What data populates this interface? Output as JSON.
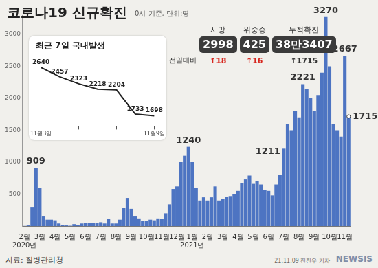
{
  "title": "코로나19 신규확진",
  "subtitle": "0시 기준, 단위:명",
  "stats": {
    "note": "전일대비",
    "items": [
      {
        "label": "사망",
        "value": "2998",
        "change": "↑18",
        "color": "#d7261e"
      },
      {
        "label": "위중증",
        "value": "425",
        "change": "↑16",
        "color": "#d7261e"
      },
      {
        "label": "누적확진",
        "value": "38만3407",
        "change": "↑1715",
        "color": "#333333"
      }
    ]
  },
  "chart_data": [
    {
      "type": "bar",
      "categories": [
        [
          "2월",
          "2020년"
        ],
        null,
        null,
        null,
        "3월",
        null,
        null,
        null,
        "4월",
        null,
        null,
        null,
        "5월",
        null,
        null,
        null,
        "6월",
        null,
        null,
        null,
        "7월",
        null,
        null,
        null,
        "8월",
        null,
        null,
        null,
        "9월",
        null,
        null,
        null,
        "10월",
        null,
        null,
        null,
        "11월",
        null,
        null,
        null,
        "12월",
        null,
        null,
        null,
        [
          "1월",
          "2021년"
        ],
        null,
        null,
        null,
        "2월",
        null,
        null,
        null,
        "3월",
        null,
        null,
        null,
        "4월",
        null,
        null,
        null,
        "5월",
        null,
        null,
        null,
        "6월",
        null,
        null,
        null,
        "7월",
        null,
        null,
        null,
        "8월",
        null,
        null,
        null,
        "9월",
        null,
        null,
        null,
        "10월",
        null,
        null,
        null,
        "11월",
        null
      ],
      "values": [
        2,
        10,
        300,
        909,
        600,
        150,
        100,
        100,
        90,
        40,
        15,
        10,
        5,
        30,
        20,
        40,
        50,
        45,
        50,
        50,
        60,
        40,
        110,
        40,
        40,
        100,
        280,
        440,
        270,
        150,
        120,
        80,
        80,
        100,
        90,
        120,
        110,
        200,
        340,
        580,
        620,
        1000,
        1100,
        1240,
        1000,
        600,
        400,
        450,
        400,
        450,
        620,
        400,
        420,
        460,
        470,
        500,
        550,
        670,
        730,
        790,
        660,
        700,
        650,
        560,
        550,
        480,
        650,
        800,
        1211,
        1600,
        1500,
        1800,
        1700,
        2221,
        2150,
        2000,
        1800,
        2050,
        2400,
        3270,
        2500,
        1600,
        1500,
        1400,
        2667,
        1715
      ],
      "value_labels": [
        null,
        null,
        null,
        "909",
        null,
        null,
        null,
        null,
        null,
        null,
        null,
        null,
        null,
        null,
        null,
        null,
        null,
        null,
        null,
        null,
        null,
        null,
        null,
        null,
        null,
        null,
        null,
        null,
        null,
        null,
        null,
        null,
        null,
        null,
        null,
        null,
        null,
        null,
        null,
        null,
        null,
        null,
        null,
        "1240",
        null,
        null,
        null,
        null,
        null,
        null,
        null,
        null,
        null,
        null,
        null,
        null,
        null,
        null,
        null,
        null,
        null,
        null,
        null,
        null,
        null,
        null,
        null,
        null,
        "1211",
        null,
        null,
        null,
        null,
        "2221",
        null,
        null,
        null,
        null,
        null,
        "3270",
        null,
        null,
        null,
        null,
        "2667",
        "1715"
      ],
      "color": "#4d74c2",
      "ylim": [
        0,
        3300
      ],
      "yticks": [
        500,
        1000,
        1500,
        2000,
        2500,
        3000
      ],
      "grid": false
    },
    {
      "type": "line",
      "title": "최근 7일 국내발생",
      "categories": [
        "11월3일",
        null,
        null,
        null,
        null,
        null,
        "11월9일"
      ],
      "values": [
        2640,
        2457,
        2323,
        2218,
        2204,
        1733,
        1698
      ],
      "color": "#222222",
      "ylim": [
        1500,
        2750
      ],
      "data_labels": true,
      "tick_labels": "x",
      "marker": "none",
      "grid": false
    }
  ],
  "footer": {
    "source": "자료: 질병관리청",
    "credit": "21.11.09 전진우 기자",
    "logo": "NEWSIS"
  }
}
